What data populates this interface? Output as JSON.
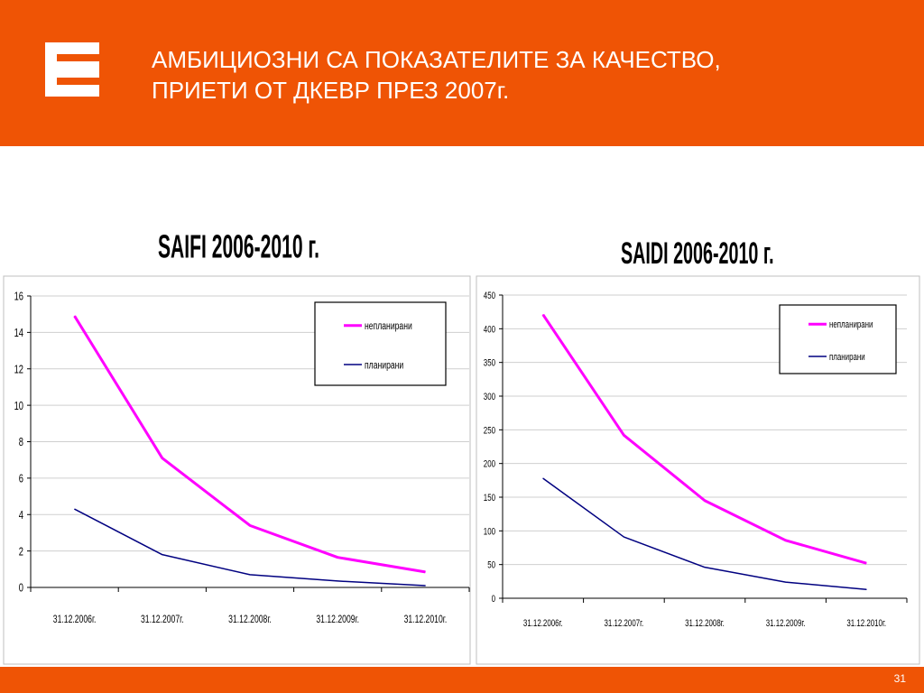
{
  "slide": {
    "title_line1": "АМБИЦИОЗНИ СА ПОКАЗАТЕЛИТЕ ЗА КАЧЕСТВО,",
    "title_line2": "ПРИЕТИ ОТ ДКЕВР ПРЕЗ 2007г.",
    "page_number": "31",
    "accent_color": "#ef5405",
    "logo_icon": "cez-logo-icon"
  },
  "chart_data": [
    {
      "type": "line",
      "title": "SAIFI 2006-2010 г.",
      "categories": [
        "31.12.2006г.",
        "31.12.2007г.",
        "31.12.2008г.",
        "31.12.2009г.",
        "31.12.2010г."
      ],
      "ylim": [
        0,
        16
      ],
      "yticks": [
        0,
        2,
        4,
        6,
        8,
        10,
        12,
        14,
        16
      ],
      "grid": true,
      "legend_position": "top-right",
      "series": [
        {
          "name": "непланирани",
          "color": "#ff00ff",
          "values": [
            14.9,
            7.1,
            3.4,
            1.65,
            0.85
          ]
        },
        {
          "name": "планирани",
          "color": "#000080",
          "values": [
            4.3,
            1.8,
            0.7,
            0.35,
            0.1
          ]
        }
      ]
    },
    {
      "type": "line",
      "title": "SAIDI 2006-2010 г.",
      "categories": [
        "31.12.2006г.",
        "31.12.2007г.",
        "31.12.2008г.",
        "31.12.2009г.",
        "31.12.2010г."
      ],
      "ylim": [
        0,
        450
      ],
      "yticks": [
        0,
        50,
        100,
        150,
        200,
        250,
        300,
        350,
        400,
        450
      ],
      "grid": true,
      "legend_position": "top-right",
      "series": [
        {
          "name": "непланирани",
          "color": "#ff00ff",
          "values": [
            421,
            242,
            145,
            86,
            52
          ]
        },
        {
          "name": "планирани",
          "color": "#000080",
          "values": [
            178,
            91,
            46,
            24,
            13
          ]
        }
      ]
    }
  ]
}
